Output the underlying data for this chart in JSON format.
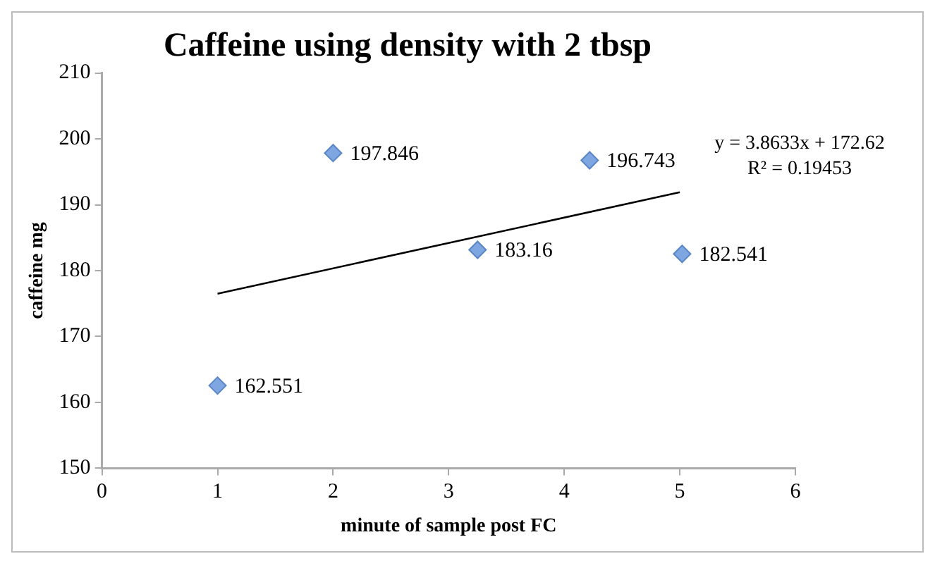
{
  "chart_data": {
    "type": "scatter",
    "title": "Caffeine using density with 2 tbsp",
    "xlabel": "minute of sample post FC",
    "ylabel": "caffeine mg",
    "series": [
      {
        "color": "#7ea6e0",
        "x": [
          1,
          2,
          3.25,
          4.22,
          5.02
        ],
        "values": [
          162.551,
          197.846,
          183.16,
          196.743,
          182.541
        ],
        "value_labels": [
          "162.551",
          "197.846",
          "183.16",
          "196.743",
          "182.541"
        ]
      },
      {
        "type": "line",
        "color": "#000000",
        "x": [
          1,
          5
        ],
        "values": [
          176.5,
          191.9
        ],
        "marker": "none"
      }
    ],
    "annotations": [
      "y = 3.8633x + 172.62",
      "R² = 0.19453"
    ],
    "xlim": [
      0,
      6
    ],
    "xticks": [
      0,
      1,
      2,
      3,
      4,
      5,
      6
    ],
    "ylim": [
      150,
      210
    ],
    "yticks": [
      150,
      160,
      170,
      180,
      190,
      200,
      210
    ],
    "marker": "diamond",
    "grid": false,
    "legend": false
  }
}
